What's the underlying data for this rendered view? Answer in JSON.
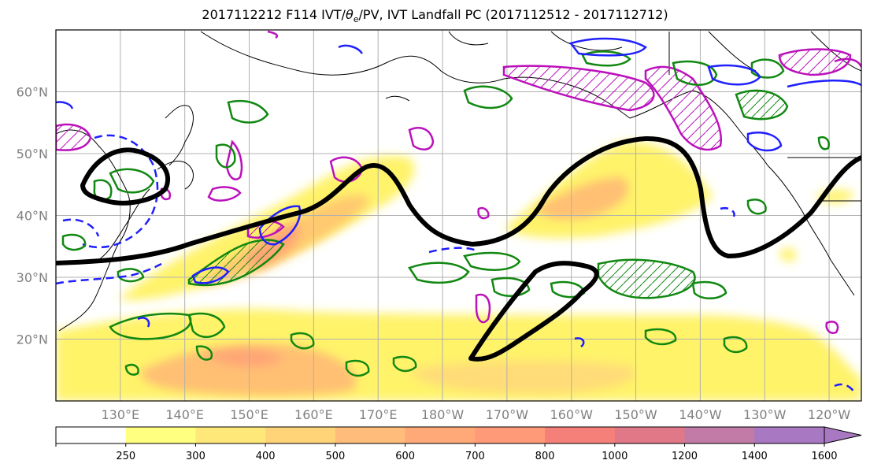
{
  "title": "2017112212 F114 IVT/θe/PV, IVT Landfall PC (2017112512 - 2017112712)",
  "title_parts": {
    "pre": "2017112212 F114 IVT/",
    "theta": "θ",
    "sub": "e",
    "post": "/PV, IVT Landfall PC (2017112512 - 2017112712)"
  },
  "map": {
    "projection": "equirectangular",
    "lon_range": [
      120,
      245
    ],
    "lat_range": [
      10,
      70
    ],
    "lat_ticks": [
      {
        "value": 20,
        "label": "20°N"
      },
      {
        "value": 30,
        "label": "30°N"
      },
      {
        "value": 40,
        "label": "40°N"
      },
      {
        "value": 50,
        "label": "50°N"
      },
      {
        "value": 60,
        "label": "60°N"
      }
    ],
    "lon_ticks": [
      {
        "value": 130,
        "label": "130°E"
      },
      {
        "value": 140,
        "label": "140°E"
      },
      {
        "value": 150,
        "label": "150°E"
      },
      {
        "value": 160,
        "label": "160°E"
      },
      {
        "value": 170,
        "label": "170°E"
      },
      {
        "value": 180,
        "label": "180°W"
      },
      {
        "value": 190,
        "label": "170°W"
      },
      {
        "value": 200,
        "label": "160°W"
      },
      {
        "value": 210,
        "label": "150°W"
      },
      {
        "value": 220,
        "label": "140°W"
      },
      {
        "value": 230,
        "label": "130°W"
      },
      {
        "value": 240,
        "label": "120°W"
      }
    ],
    "gridlines": true,
    "colors": {
      "landfall_contour": "#000000",
      "theta_e": "#1f1fff",
      "pv_green": "#118811",
      "pv_magenta": "#bb11bb",
      "coastline": "#000000",
      "grid": "#b0b0b0"
    }
  },
  "colorbar": {
    "levels": [
      250,
      300,
      400,
      500,
      600,
      700,
      800,
      1000,
      1200,
      1400,
      1600
    ],
    "colors": [
      "#ffffff",
      "#ffff80",
      "#ffe87a",
      "#ffd478",
      "#ffbc7a",
      "#ffa878",
      "#ff9a78",
      "#f5807a",
      "#e07888",
      "#c27aa6",
      "#a878c2"
    ],
    "extend": "max"
  }
}
